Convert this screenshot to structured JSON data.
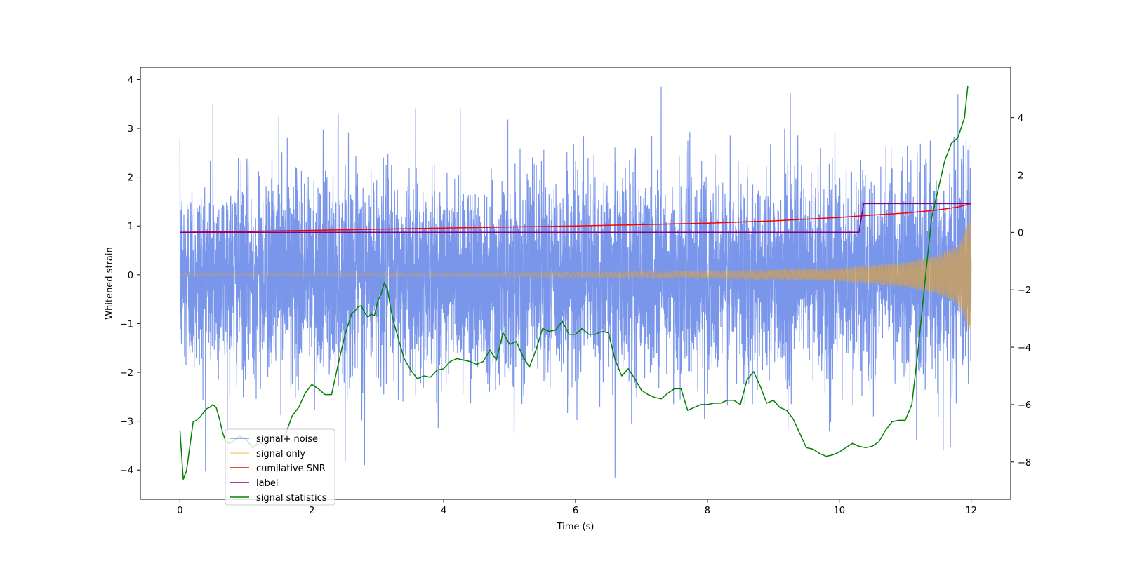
{
  "chart_data": {
    "type": "line",
    "title": "",
    "xlabel": "Time (s)",
    "ylabel": "Whitened strain",
    "y2label": "",
    "xlim": [
      -0.6,
      12.6
    ],
    "ylim": [
      -4.6,
      4.25
    ],
    "y2lim": [
      -9.3,
      5.75
    ],
    "grid": false,
    "legend_position": "lower-left",
    "x_ticks": [
      0,
      2,
      4,
      6,
      8,
      10,
      12
    ],
    "x_tick_labels": [
      "0",
      "2",
      "4",
      "6",
      "8",
      "10",
      "12"
    ],
    "y_ticks": [
      -4,
      -3,
      -2,
      -1,
      0,
      1,
      2,
      3,
      4
    ],
    "y_tick_labels": [
      "−4",
      "−3",
      "−2",
      "−1",
      "0",
      "1",
      "2",
      "3",
      "4"
    ],
    "y2_ticks": [
      -8,
      -6,
      -4,
      -2,
      0,
      2,
      4
    ],
    "y2_tick_labels": [
      "−8",
      "−6",
      "−4",
      "−2",
      "0",
      "2",
      "4"
    ],
    "series": [
      {
        "name": "signal+ noise",
        "axis": "left",
        "color": "#4169e1",
        "alpha": 0.7,
        "approx_mean": 0.0,
        "approx_std": 1.0,
        "approx_range": [
          -4.2,
          3.9
        ],
        "notable_peaks": [
          {
            "x": 0.5,
            "y": 3.5
          },
          {
            "x": 1.5,
            "y": 3.25
          },
          {
            "x": 2.4,
            "y": 3.3
          },
          {
            "x": 4.25,
            "y": 3.4
          },
          {
            "x": 7.3,
            "y": 3.85
          },
          {
            "x": 11.8,
            "y": 3.7
          },
          {
            "x": 2.8,
            "y": -3.9
          },
          {
            "x": 6.6,
            "y": -4.15
          }
        ]
      },
      {
        "name": "signal only",
        "axis": "left",
        "color": "#ffa500",
        "alpha": 0.5,
        "description": "chirp: small oscillation around 0 growing in amplitude and frequency toward t=12",
        "envelope_points": [
          [
            0.0,
            0.02
          ],
          [
            2.0,
            0.03
          ],
          [
            4.0,
            0.035
          ],
          [
            6.0,
            0.05
          ],
          [
            8.0,
            0.07
          ],
          [
            10.0,
            0.13
          ],
          [
            11.0,
            0.25
          ],
          [
            11.5,
            0.4
          ],
          [
            11.8,
            0.6
          ],
          [
            12.0,
            1.2
          ]
        ]
      },
      {
        "name": "cumilative SNR",
        "axis": "right",
        "color": "#ff0000",
        "x": [
          0.0,
          2.0,
          4.0,
          6.0,
          8.0,
          9.0,
          10.0,
          10.5,
          11.0,
          11.5,
          11.8,
          12.0
        ],
        "values": [
          0.0,
          0.07,
          0.15,
          0.22,
          0.32,
          0.4,
          0.52,
          0.6,
          0.67,
          0.78,
          0.88,
          1.0
        ]
      },
      {
        "name": "label",
        "axis": "right",
        "color": "#800080",
        "x": [
          0.0,
          10.3,
          10.37,
          12.0
        ],
        "values": [
          0.0,
          0.0,
          1.0,
          1.0
        ]
      },
      {
        "name": "signal statistics",
        "axis": "right",
        "color": "#008000",
        "x": [
          0.0,
          0.05,
          0.1,
          0.2,
          0.25,
          0.3,
          0.35,
          0.4,
          0.45,
          0.5,
          0.55,
          0.6,
          0.65,
          0.7,
          0.75,
          0.8,
          0.85,
          0.9,
          0.95,
          1.0,
          1.1,
          1.2,
          1.3,
          1.4,
          1.5,
          1.6,
          1.7,
          1.8,
          1.9,
          2.0,
          2.1,
          2.2,
          2.3,
          2.4,
          2.5,
          2.6,
          2.65,
          2.7,
          2.75,
          2.8,
          2.85,
          2.9,
          2.95,
          3.0,
          3.05,
          3.1,
          3.15,
          3.2,
          3.25,
          3.3,
          3.4,
          3.5,
          3.6,
          3.7,
          3.8,
          3.9,
          4.0,
          4.1,
          4.2,
          4.3,
          4.4,
          4.5,
          4.6,
          4.7,
          4.8,
          4.9,
          5.0,
          5.1,
          5.2,
          5.3,
          5.4,
          5.5,
          5.6,
          5.7,
          5.8,
          5.9,
          6.0,
          6.1,
          6.2,
          6.3,
          6.4,
          6.5,
          6.6,
          6.7,
          6.8,
          6.9,
          7.0,
          7.1,
          7.2,
          7.3,
          7.4,
          7.5,
          7.6,
          7.7,
          7.8,
          7.9,
          8.0,
          8.1,
          8.2,
          8.3,
          8.4,
          8.5,
          8.6,
          8.7,
          8.8,
          8.9,
          9.0,
          9.1,
          9.2,
          9.3,
          9.4,
          9.5,
          9.6,
          9.7,
          9.8,
          9.9,
          10.0,
          10.1,
          10.2,
          10.3,
          10.4,
          10.5,
          10.6,
          10.7,
          10.8,
          10.9,
          11.0,
          11.1,
          11.2,
          11.3,
          11.4,
          11.5,
          11.6,
          11.7,
          11.8,
          11.9,
          11.95
        ],
        "values": [
          -6.9,
          -8.6,
          -8.3,
          -6.6,
          -6.55,
          -6.45,
          -6.3,
          -6.15,
          -6.1,
          -6.0,
          -6.1,
          -6.5,
          -7.0,
          -7.3,
          -7.35,
          -7.3,
          -7.2,
          -7.1,
          -7.15,
          -7.2,
          -7.5,
          -7.3,
          -7.45,
          -7.1,
          -7.2,
          -7.05,
          -6.4,
          -6.1,
          -5.6,
          -5.3,
          -5.45,
          -5.65,
          -5.65,
          -4.6,
          -3.6,
          -2.85,
          -2.75,
          -2.6,
          -2.55,
          -2.8,
          -2.95,
          -2.85,
          -2.9,
          -2.4,
          -2.15,
          -1.75,
          -2.0,
          -2.7,
          -3.2,
          -3.6,
          -4.4,
          -4.8,
          -5.1,
          -5.0,
          -5.05,
          -4.8,
          -4.75,
          -4.5,
          -4.4,
          -4.45,
          -4.5,
          -4.6,
          -4.5,
          -4.1,
          -4.45,
          -3.5,
          -3.9,
          -3.8,
          -4.3,
          -4.7,
          -4.1,
          -3.35,
          -3.45,
          -3.4,
          -3.1,
          -3.55,
          -3.55,
          -3.35,
          -3.55,
          -3.55,
          -3.45,
          -3.5,
          -4.45,
          -5.0,
          -4.75,
          -5.1,
          -5.5,
          -5.65,
          -5.75,
          -5.8,
          -5.6,
          -5.45,
          -5.45,
          -6.2,
          -6.1,
          -6.0,
          -6.0,
          -5.95,
          -5.95,
          -5.85,
          -5.85,
          -6.0,
          -5.15,
          -4.85,
          -5.35,
          -5.95,
          -5.85,
          -6.1,
          -6.2,
          -6.5,
          -7.0,
          -7.5,
          -7.55,
          -7.7,
          -7.8,
          -7.75,
          -7.65,
          -7.5,
          -7.35,
          -7.45,
          -7.5,
          -7.45,
          -7.3,
          -6.9,
          -6.6,
          -6.55,
          -6.55,
          -6.0,
          -4.0,
          -1.7,
          0.5,
          1.5,
          2.5,
          3.1,
          3.3,
          4.0,
          5.1
        ]
      }
    ]
  }
}
